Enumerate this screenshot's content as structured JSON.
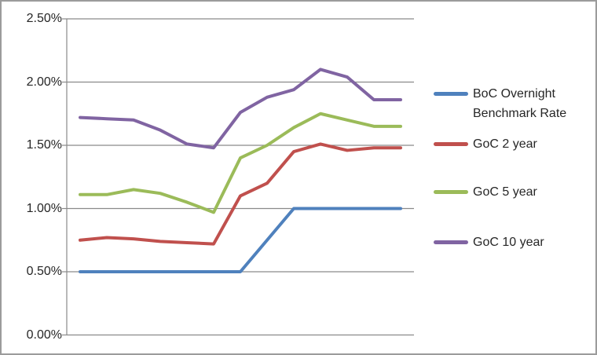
{
  "frame": {
    "background": "#FFFFFF",
    "border_color": "#9b9b9b"
  },
  "chart_data": {
    "type": "line",
    "title": "",
    "xlabel": "",
    "ylabel": "",
    "x_axis": {
      "labels_visible": false,
      "num_points": 13
    },
    "ylim": [
      0,
      2.5
    ],
    "yticks": [
      {
        "value": 2.5,
        "label": "2.50%"
      },
      {
        "value": 2.0,
        "label": "2.00%"
      },
      {
        "value": 1.5,
        "label": "1.50%"
      },
      {
        "value": 1.0,
        "label": "1.00%"
      },
      {
        "value": 0.5,
        "label": "0.50%"
      },
      {
        "value": 0.0,
        "label": "0.00%"
      }
    ],
    "grid": "horizontal",
    "legend_position": "right",
    "axis_color": "#8a8a8a",
    "grid_color": "#8a8a8a",
    "text_color": "#262626",
    "series": [
      {
        "name": "BoC Overnight Benchmark Rate",
        "color": "#4F81BD",
        "values": [
          0.5,
          0.5,
          0.5,
          0.5,
          0.5,
          0.5,
          0.5,
          0.75,
          1.0,
          1.0,
          1.0,
          1.0,
          1.0
        ]
      },
      {
        "name": "GoC 2 year",
        "color": "#C0504D",
        "values": [
          0.75,
          0.77,
          0.76,
          0.74,
          0.73,
          0.72,
          1.1,
          1.2,
          1.45,
          1.51,
          1.46,
          1.48,
          1.48
        ]
      },
      {
        "name": "GoC 5 year",
        "color": "#9BBB59",
        "values": [
          1.11,
          1.11,
          1.15,
          1.12,
          1.05,
          0.97,
          1.4,
          1.5,
          1.64,
          1.75,
          1.7,
          1.65,
          1.65
        ]
      },
      {
        "name": "GoC 10 year",
        "color": "#8064A2",
        "values": [
          1.72,
          1.71,
          1.7,
          1.62,
          1.51,
          1.48,
          1.76,
          1.88,
          1.94,
          2.1,
          2.04,
          1.86,
          1.86
        ]
      }
    ]
  }
}
